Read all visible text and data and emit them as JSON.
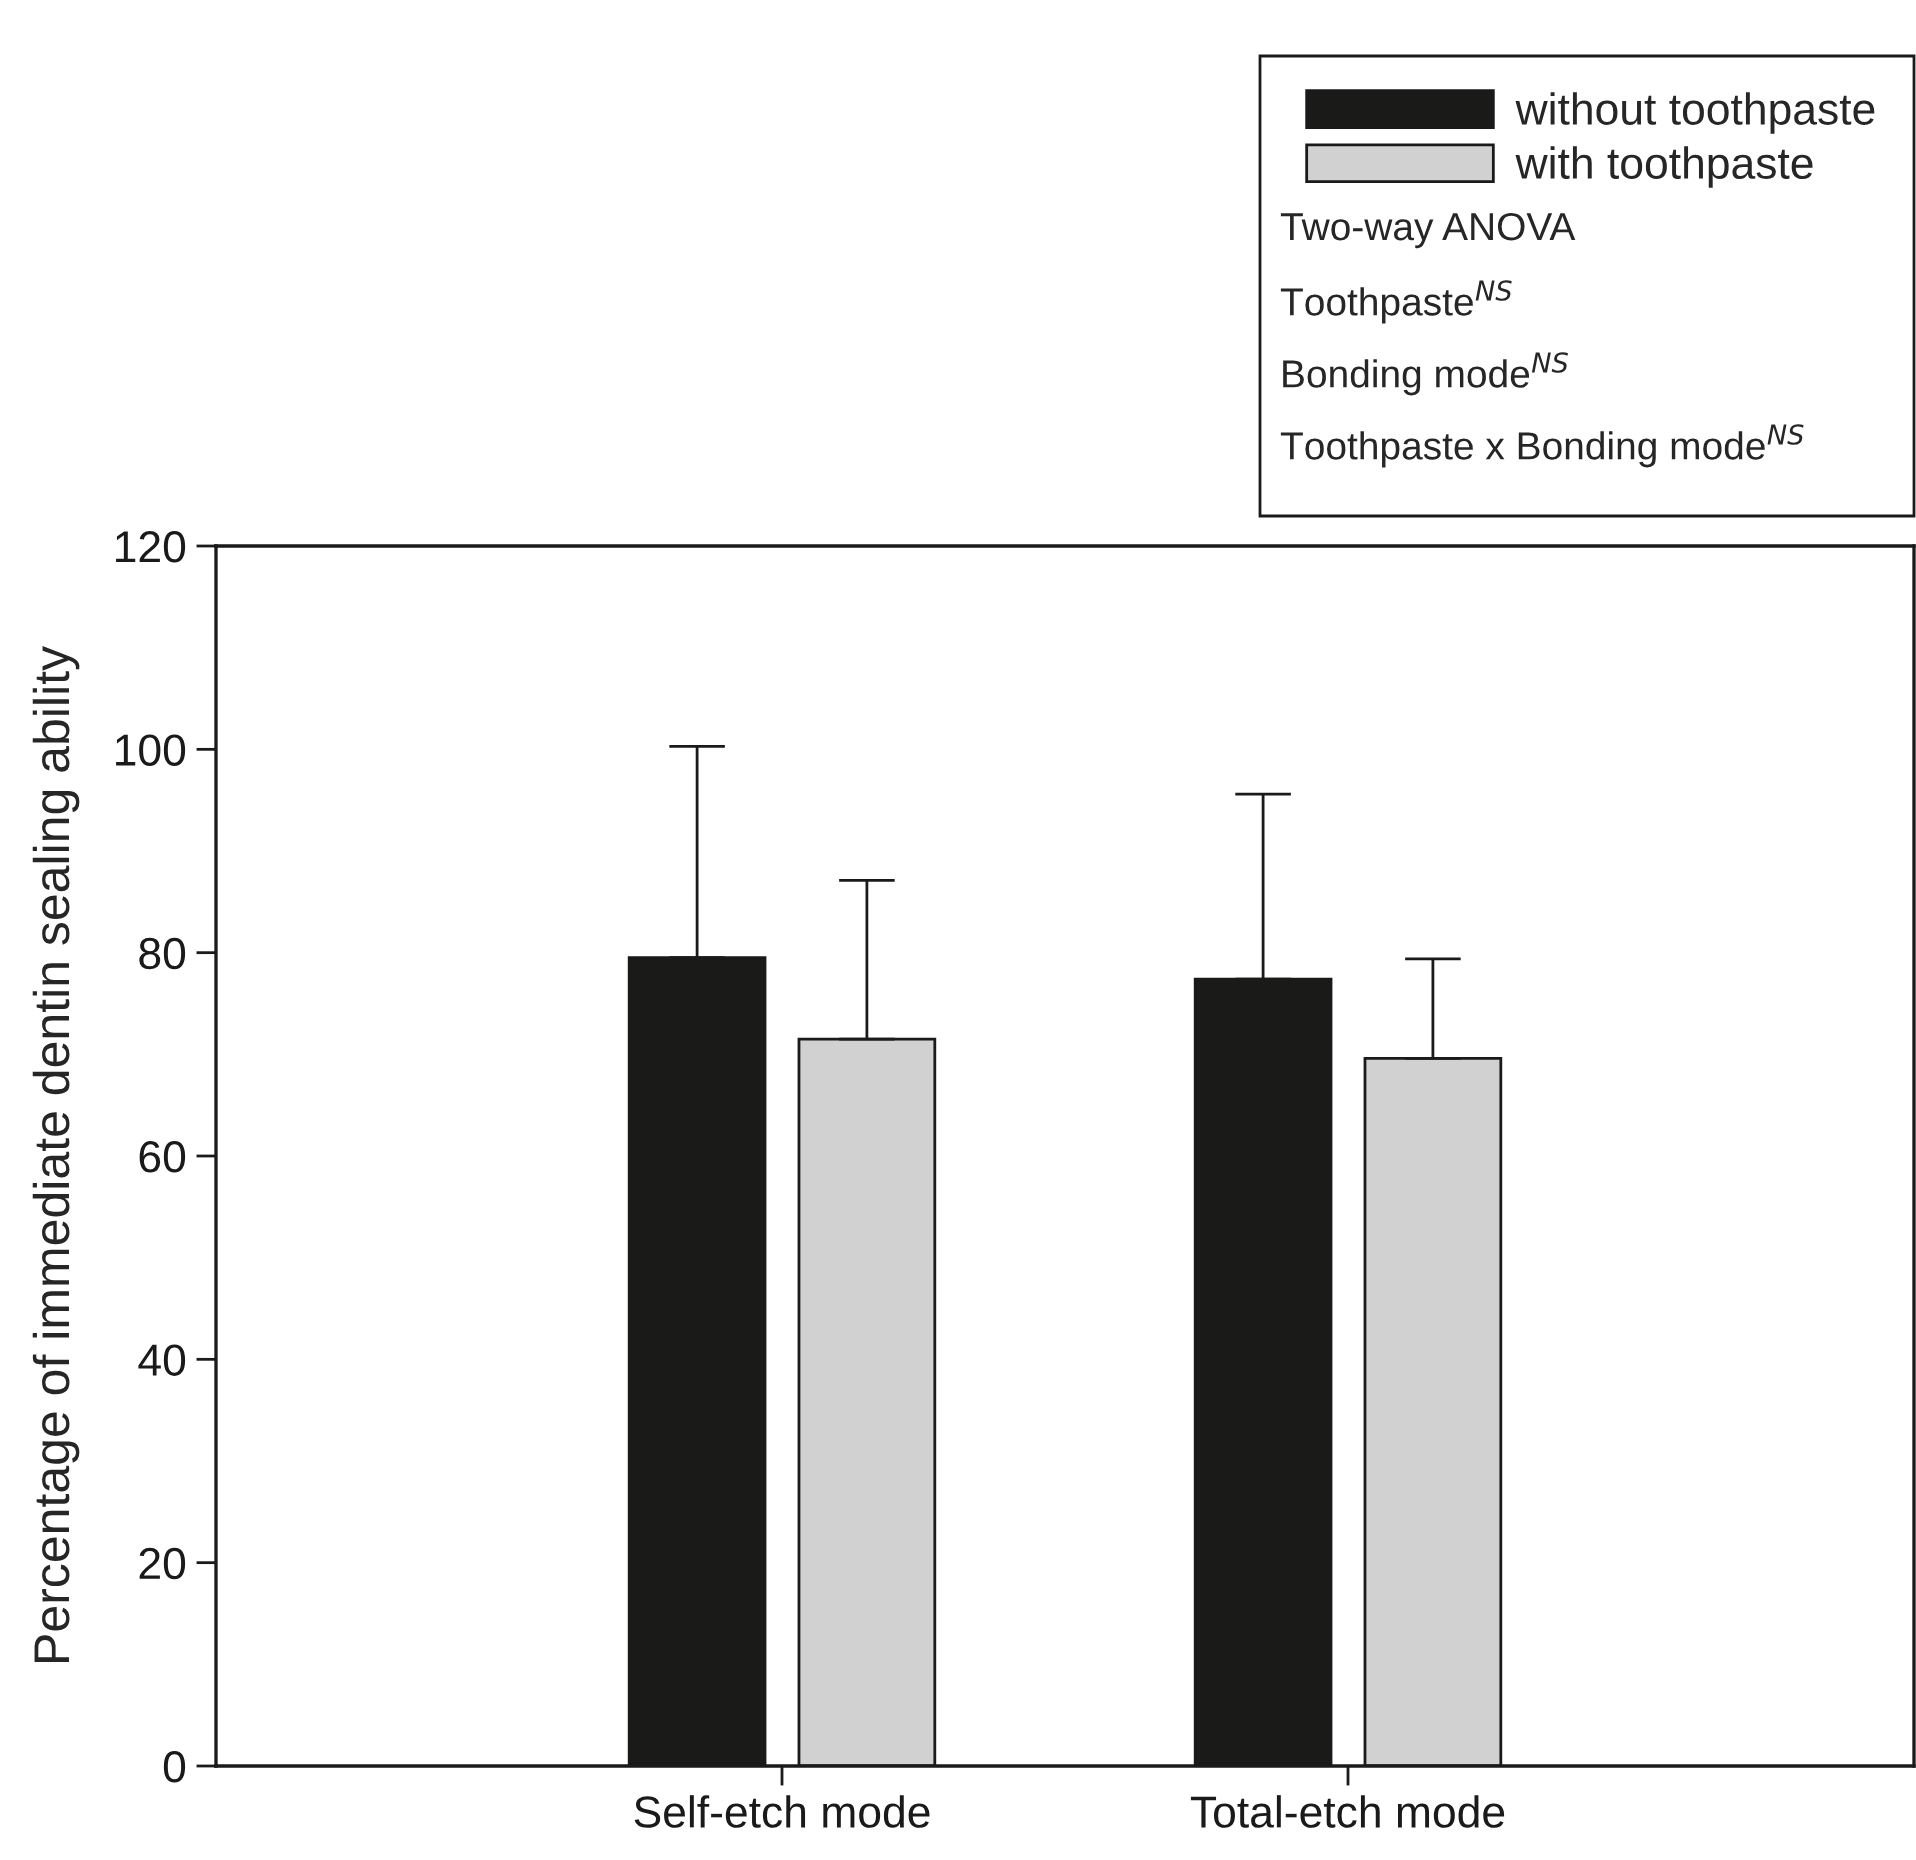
{
  "chart_data": {
    "type": "bar",
    "categories": [
      "Self-etch mode",
      "Total-etch mode"
    ],
    "ylabel": "Percentage of immediate dentin sealing ability",
    "series": [
      {
        "name": "without toothpaste",
        "color": "#1a1a18",
        "values": [
          79.5,
          77.4
        ],
        "errors": [
          [
            79.5,
            100.3
          ],
          [
            77.4,
            95.6
          ]
        ]
      },
      {
        "name": "with toothpaste",
        "color": "#d0d1d0",
        "values": [
          71.5,
          69.6
        ],
        "errors": [
          [
            71.5,
            87.1
          ],
          [
            69.6,
            79.4
          ]
        ]
      }
    ],
    "ylim": [
      0,
      120
    ],
    "yticks": [
      0,
      20,
      40,
      60,
      80,
      100,
      120
    ],
    "annotations": [
      "Two-way ANOVA",
      "Toothpaste$^{NS}$",
      "Bonding mode$^{NS}$",
      "Toothpaste x Bonding mode$^{NS}$"
    ],
    "legend": "top right",
    "grid": false
  }
}
